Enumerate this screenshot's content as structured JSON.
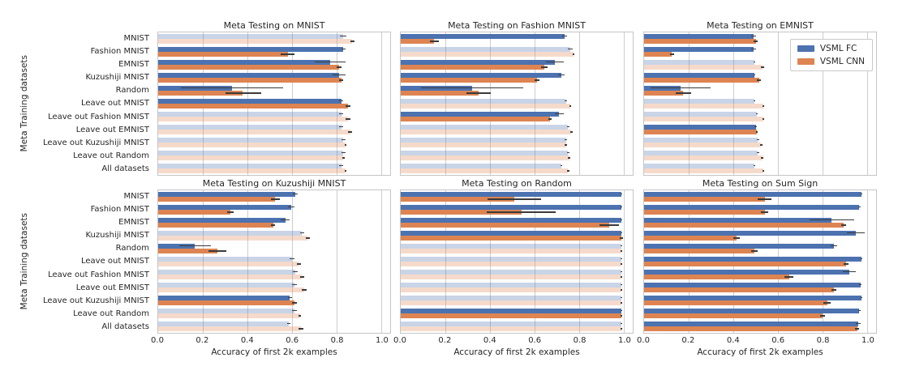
{
  "figure": {
    "background": "#ffffff",
    "text_color": "#262626",
    "grid_color": "#cdcdcd",
    "spine_color": "#c5c5c5",
    "errorbar_color": "#3a3a3a",
    "legend": {
      "entries": [
        {
          "label": "VSML FC",
          "key": "fc",
          "color": "#4C72B0"
        },
        {
          "label": "VSML CNN",
          "key": "cnn",
          "color": "#DD8452"
        }
      ]
    }
  },
  "chart_data": {
    "type": "bar",
    "orientation": "horizontal",
    "grid": true,
    "xlabel": "Accuracy of first 2k examples",
    "ylabel": "Meta Training datasets",
    "xlim": [
      0,
      1.04
    ],
    "x_ticks": [
      0,
      0.2,
      0.4,
      0.6,
      0.8,
      1.0
    ],
    "x_tick_labels": [
      "0.0",
      "0.2",
      "0.4",
      "0.6",
      "0.8",
      "1.0"
    ],
    "series_names": [
      "VSML FC",
      "VSML CNN"
    ],
    "colors": {
      "fc": "#4C72B0",
      "cnn": "#DD8452",
      "faded_alpha": 0.3
    },
    "categories": [
      "MNIST",
      "Fashion MNIST",
      "EMNIST",
      "Kuzushiji MNIST",
      "Random",
      "Leave out MNIST",
      "Leave out Fashion MNIST",
      "Leave out EMNIST",
      "Leave out Kuzushiji MNIST",
      "Leave out Random",
      "All datasets"
    ],
    "charts": [
      {
        "title": "Meta Testing on MNIST",
        "fc": [
          0.83,
          0.83,
          0.77,
          0.81,
          0.33,
          0.82,
          0.82,
          0.82,
          0.83,
          0.83,
          0.82
        ],
        "fc_err": [
          0.015,
          0.01,
          0.07,
          0.03,
          0.23,
          0.01,
          0.01,
          0.01,
          0.01,
          0.01,
          0.01
        ],
        "cnn": [
          0.87,
          0.58,
          0.81,
          0.82,
          0.38,
          0.85,
          0.85,
          0.86,
          0.84,
          0.83,
          0.84
        ],
        "cnn_err": [
          0.01,
          0.03,
          0.01,
          0.01,
          0.08,
          0.01,
          0.01,
          0.01,
          0.005,
          0.005,
          0.005
        ],
        "faded": [
          true,
          false,
          false,
          false,
          false,
          false,
          true,
          true,
          true,
          true,
          true
        ]
      },
      {
        "title": "Meta Testing on Fashion MNIST",
        "fc": [
          0.735,
          0.76,
          0.69,
          0.72,
          0.32,
          0.74,
          0.71,
          0.75,
          0.74,
          0.75,
          0.72
        ],
        "fc_err": [
          0.01,
          0.01,
          0.04,
          0.015,
          0.23,
          0.005,
          0.02,
          0.005,
          0.005,
          0.005,
          0.005
        ],
        "cnn": [
          0.15,
          0.775,
          0.645,
          0.61,
          0.35,
          0.76,
          0.67,
          0.765,
          0.74,
          0.755,
          0.75
        ],
        "cnn_err": [
          0.02,
          0.005,
          0.015,
          0.01,
          0.055,
          0.005,
          0.008,
          0.005,
          0.005,
          0.005,
          0.005
        ],
        "faded": [
          false,
          true,
          false,
          false,
          false,
          true,
          false,
          true,
          true,
          true,
          true
        ]
      },
      {
        "title": "Meta Testing on EMNIST",
        "fc": [
          0.49,
          0.49,
          0.495,
          0.495,
          0.165,
          0.495,
          0.505,
          0.5,
          0.51,
          0.51,
          0.495
        ],
        "fc_err": [
          0.01,
          0.01,
          0.005,
          0.005,
          0.135,
          0.005,
          0.005,
          0.005,
          0.005,
          0.005,
          0.005
        ],
        "cnn": [
          0.5,
          0.125,
          0.53,
          0.515,
          0.175,
          0.535,
          0.535,
          0.505,
          0.525,
          0.53,
          0.535
        ],
        "cnn_err": [
          0.01,
          0.01,
          0.008,
          0.008,
          0.035,
          0.005,
          0.005,
          0.005,
          0.005,
          0.005,
          0.005
        ],
        "faded": [
          false,
          false,
          true,
          false,
          false,
          true,
          true,
          false,
          true,
          true,
          true
        ]
      },
      {
        "title": "Meta Testing on Kuzushiji MNIST",
        "fc": [
          0.615,
          0.595,
          0.57,
          0.645,
          0.165,
          0.6,
          0.615,
          0.61,
          0.59,
          0.61,
          0.585
        ],
        "fc_err": [
          0.01,
          0.015,
          0.02,
          0.01,
          0.07,
          0.01,
          0.01,
          0.01,
          0.01,
          0.01,
          0.008
        ],
        "cnn": [
          0.525,
          0.325,
          0.515,
          0.67,
          0.265,
          0.63,
          0.645,
          0.655,
          0.61,
          0.635,
          0.64
        ],
        "cnn_err": [
          0.02,
          0.015,
          0.01,
          0.01,
          0.04,
          0.01,
          0.01,
          0.01,
          0.01,
          0.005,
          0.01
        ],
        "faded": [
          false,
          false,
          false,
          true,
          false,
          true,
          true,
          true,
          false,
          true,
          true
        ]
      },
      {
        "title": "Meta Testing on Random",
        "fc": [
          0.99,
          0.99,
          0.99,
          0.99,
          0.99,
          0.99,
          0.99,
          0.99,
          0.99,
          0.99,
          0.99
        ],
        "fc_err": [
          0.003,
          0.003,
          0.003,
          0.003,
          0.003,
          0.003,
          0.003,
          0.003,
          0.003,
          0.003,
          0.003
        ],
        "cnn": [
          0.51,
          0.54,
          0.935,
          0.99,
          0.99,
          0.99,
          0.99,
          0.99,
          0.99,
          0.99,
          0.99
        ],
        "cnn_err": [
          0.12,
          0.155,
          0.045,
          0.008,
          0.003,
          0.003,
          0.003,
          0.003,
          0.003,
          0.003,
          0.003
        ],
        "faded": [
          false,
          false,
          false,
          false,
          true,
          true,
          true,
          true,
          true,
          false,
          true
        ]
      },
      {
        "title": "Meta Testing on Sum Sign",
        "fc": [
          0.975,
          0.965,
          0.84,
          0.95,
          0.85,
          0.975,
          0.92,
          0.97,
          0.975,
          0.965,
          0.96
        ],
        "fc_err": [
          0.005,
          0.005,
          0.1,
          0.04,
          0.015,
          0.005,
          0.03,
          0.005,
          0.005,
          0.005,
          0.01
        ],
        "cnn": [
          0.54,
          0.54,
          0.895,
          0.415,
          0.495,
          0.905,
          0.65,
          0.85,
          0.82,
          0.8,
          0.955
        ],
        "cnn_err": [
          0.03,
          0.015,
          0.01,
          0.015,
          0.015,
          0.01,
          0.02,
          0.01,
          0.015,
          0.01,
          0.01
        ],
        "faded": [
          false,
          false,
          false,
          false,
          false,
          false,
          false,
          false,
          false,
          false,
          false
        ]
      }
    ]
  }
}
